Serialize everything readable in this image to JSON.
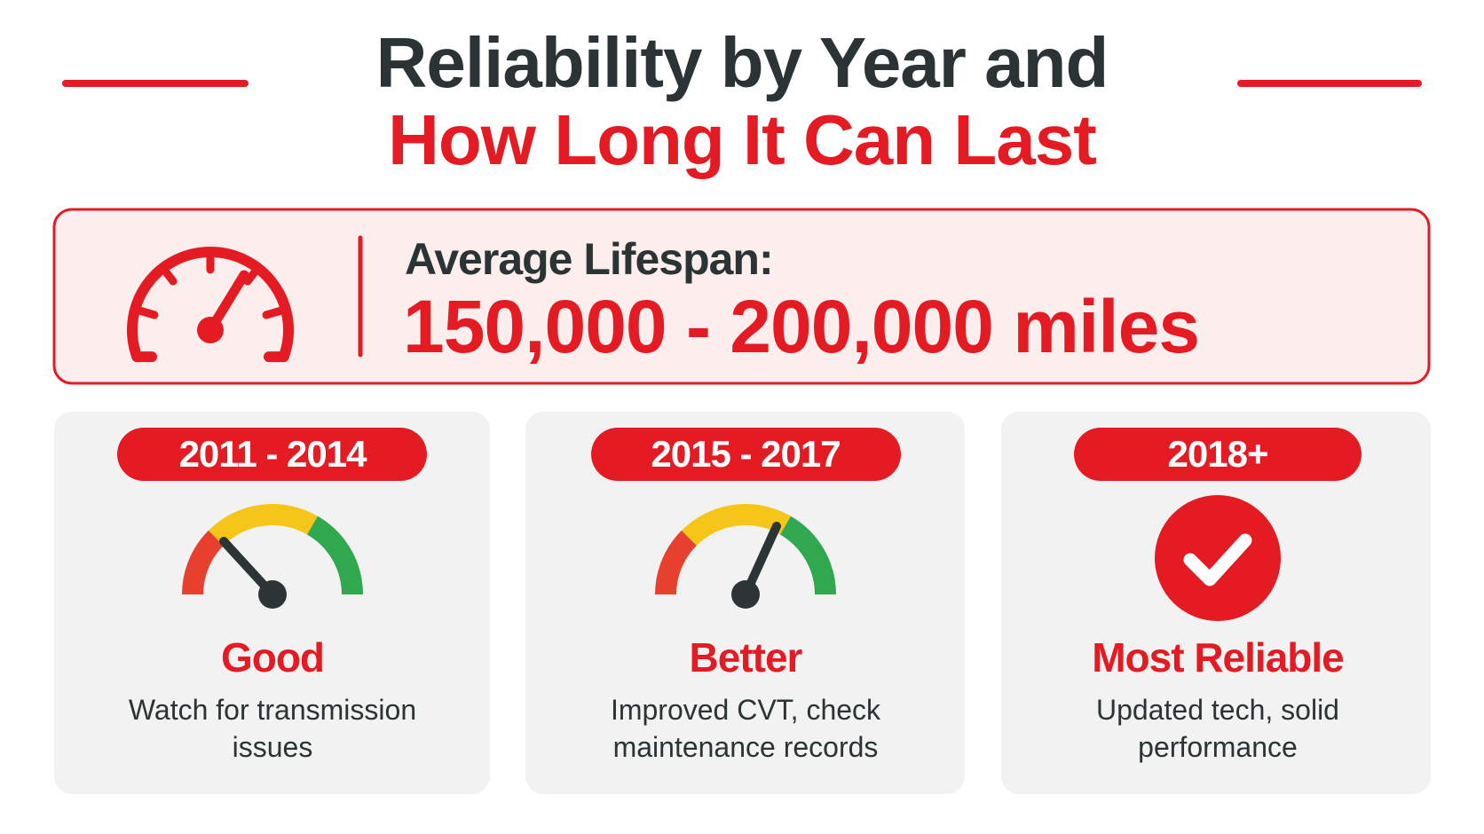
{
  "header": {
    "title_line1": "Reliability by Year and",
    "title_line2": "How Long It Can Last"
  },
  "lifespan": {
    "label": "Average Lifespan:",
    "value": "150,000 - 200,000 miles"
  },
  "cards": [
    {
      "years": "2011 - 2014",
      "rating": "Good",
      "description": [
        "Watch for transmission",
        "issues"
      ]
    },
    {
      "years": "2015 - 2017",
      "rating": "Better",
      "description": [
        "Improved CVT, check",
        "maintenance records"
      ]
    },
    {
      "years": "2018+",
      "rating": "Most Reliable",
      "description": [
        "Updated tech, solid",
        "performance"
      ]
    }
  ]
}
